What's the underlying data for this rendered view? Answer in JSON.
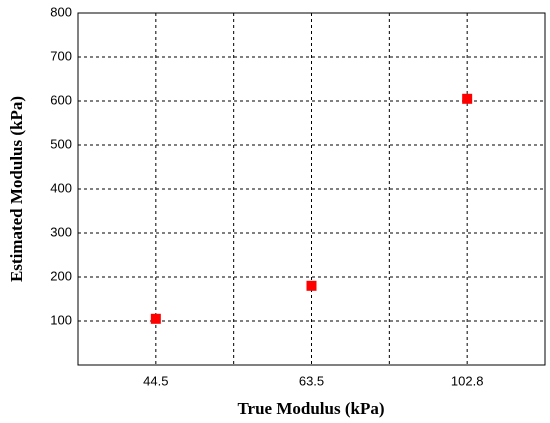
{
  "chart_data": {
    "type": "scatter",
    "xlabel": "True Modulus (kPa)",
    "ylabel": "Estimated Modulus (kPa)",
    "categories": [
      "44.5",
      null,
      "63.5",
      null,
      "102.8"
    ],
    "values": [
      105,
      null,
      180,
      null,
      605
    ],
    "color": "#ff0000",
    "marker": "square",
    "ylim": [
      0,
      800
    ],
    "yticks": [
      100,
      200,
      300,
      400,
      500,
      600,
      700,
      800
    ],
    "grid": true
  }
}
